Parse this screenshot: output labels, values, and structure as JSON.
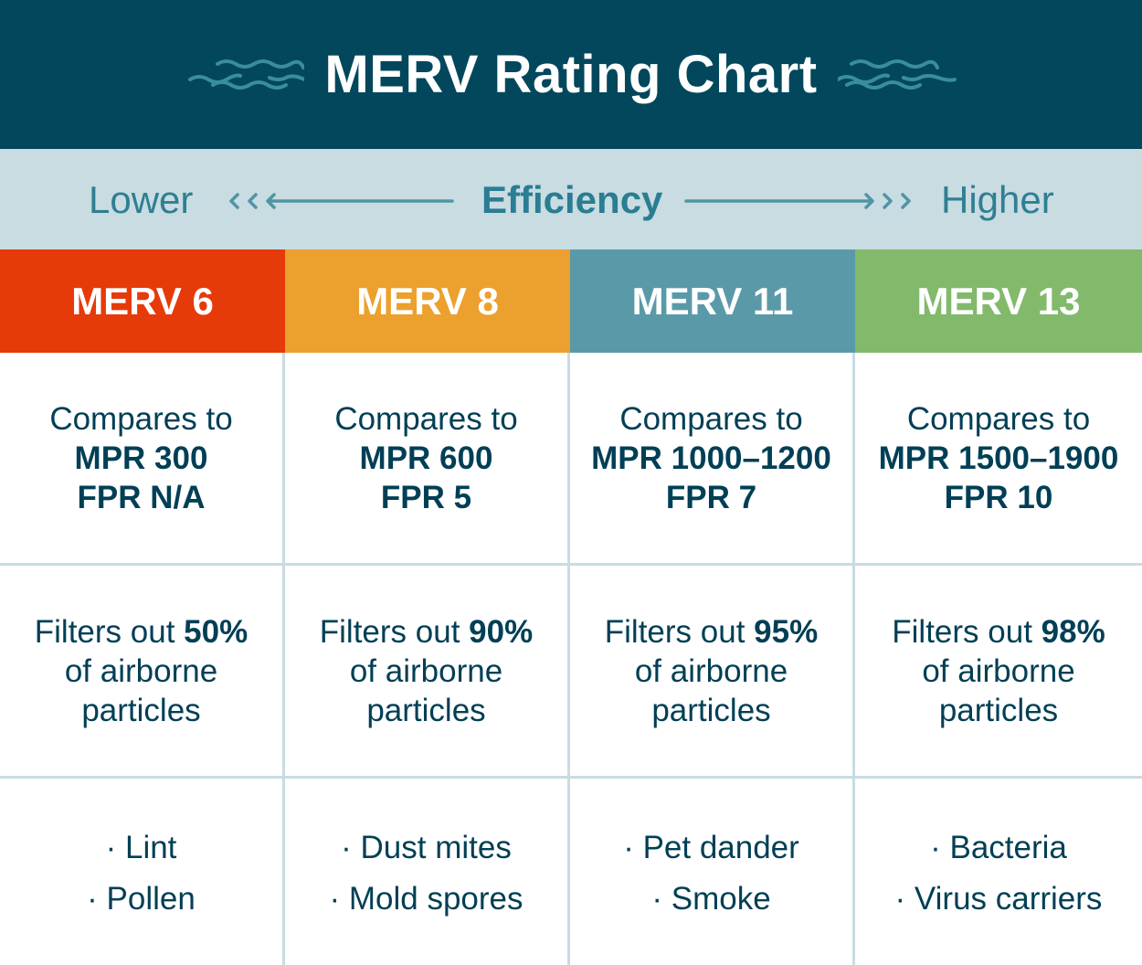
{
  "title": "MERV Rating Chart",
  "efficiency": {
    "lower": "Lower",
    "label": "Efficiency",
    "higher": "Higher"
  },
  "colors": {
    "header_bg": "#02475c",
    "band_bg": "#c8dce2",
    "text": "#003f55"
  },
  "columns": [
    {
      "label": "MERV 6",
      "color": "#e63a0a",
      "compares": "Compares to",
      "mpr": "MPR 300",
      "fpr": "FPR N/A",
      "filters_prefix": "Filters out ",
      "percent": "50%",
      "filters_suffix1": "of airborne",
      "filters_suffix2": "particles",
      "items": [
        "· Lint",
        "· Pollen"
      ]
    },
    {
      "label": "MERV 8",
      "color": "#eca02e",
      "compares": "Compares to",
      "mpr": "MPR 600",
      "fpr": "FPR 5",
      "filters_prefix": "Filters out ",
      "percent": "90%",
      "filters_suffix1": "of airborne",
      "filters_suffix2": "particles",
      "items": [
        "· Dust mites",
        "· Mold spores"
      ]
    },
    {
      "label": "MERV 11",
      "color": "#5a9aa8",
      "compares": "Compares to",
      "mpr": "MPR 1000–1200",
      "fpr": "FPR 7",
      "filters_prefix": "Filters out ",
      "percent": "95%",
      "filters_suffix1": "of airborne",
      "filters_suffix2": "particles",
      "items": [
        "· Pet dander",
        "· Smoke"
      ]
    },
    {
      "label": "MERV 13",
      "color": "#82b96b",
      "compares": "Compares to",
      "mpr": "MPR 1500–1900",
      "fpr": "FPR 10",
      "filters_prefix": "Filters out ",
      "percent": "98%",
      "filters_suffix1": "of airborne",
      "filters_suffix2": "particles",
      "items": [
        "· Bacteria",
        "· Virus carriers"
      ]
    }
  ]
}
